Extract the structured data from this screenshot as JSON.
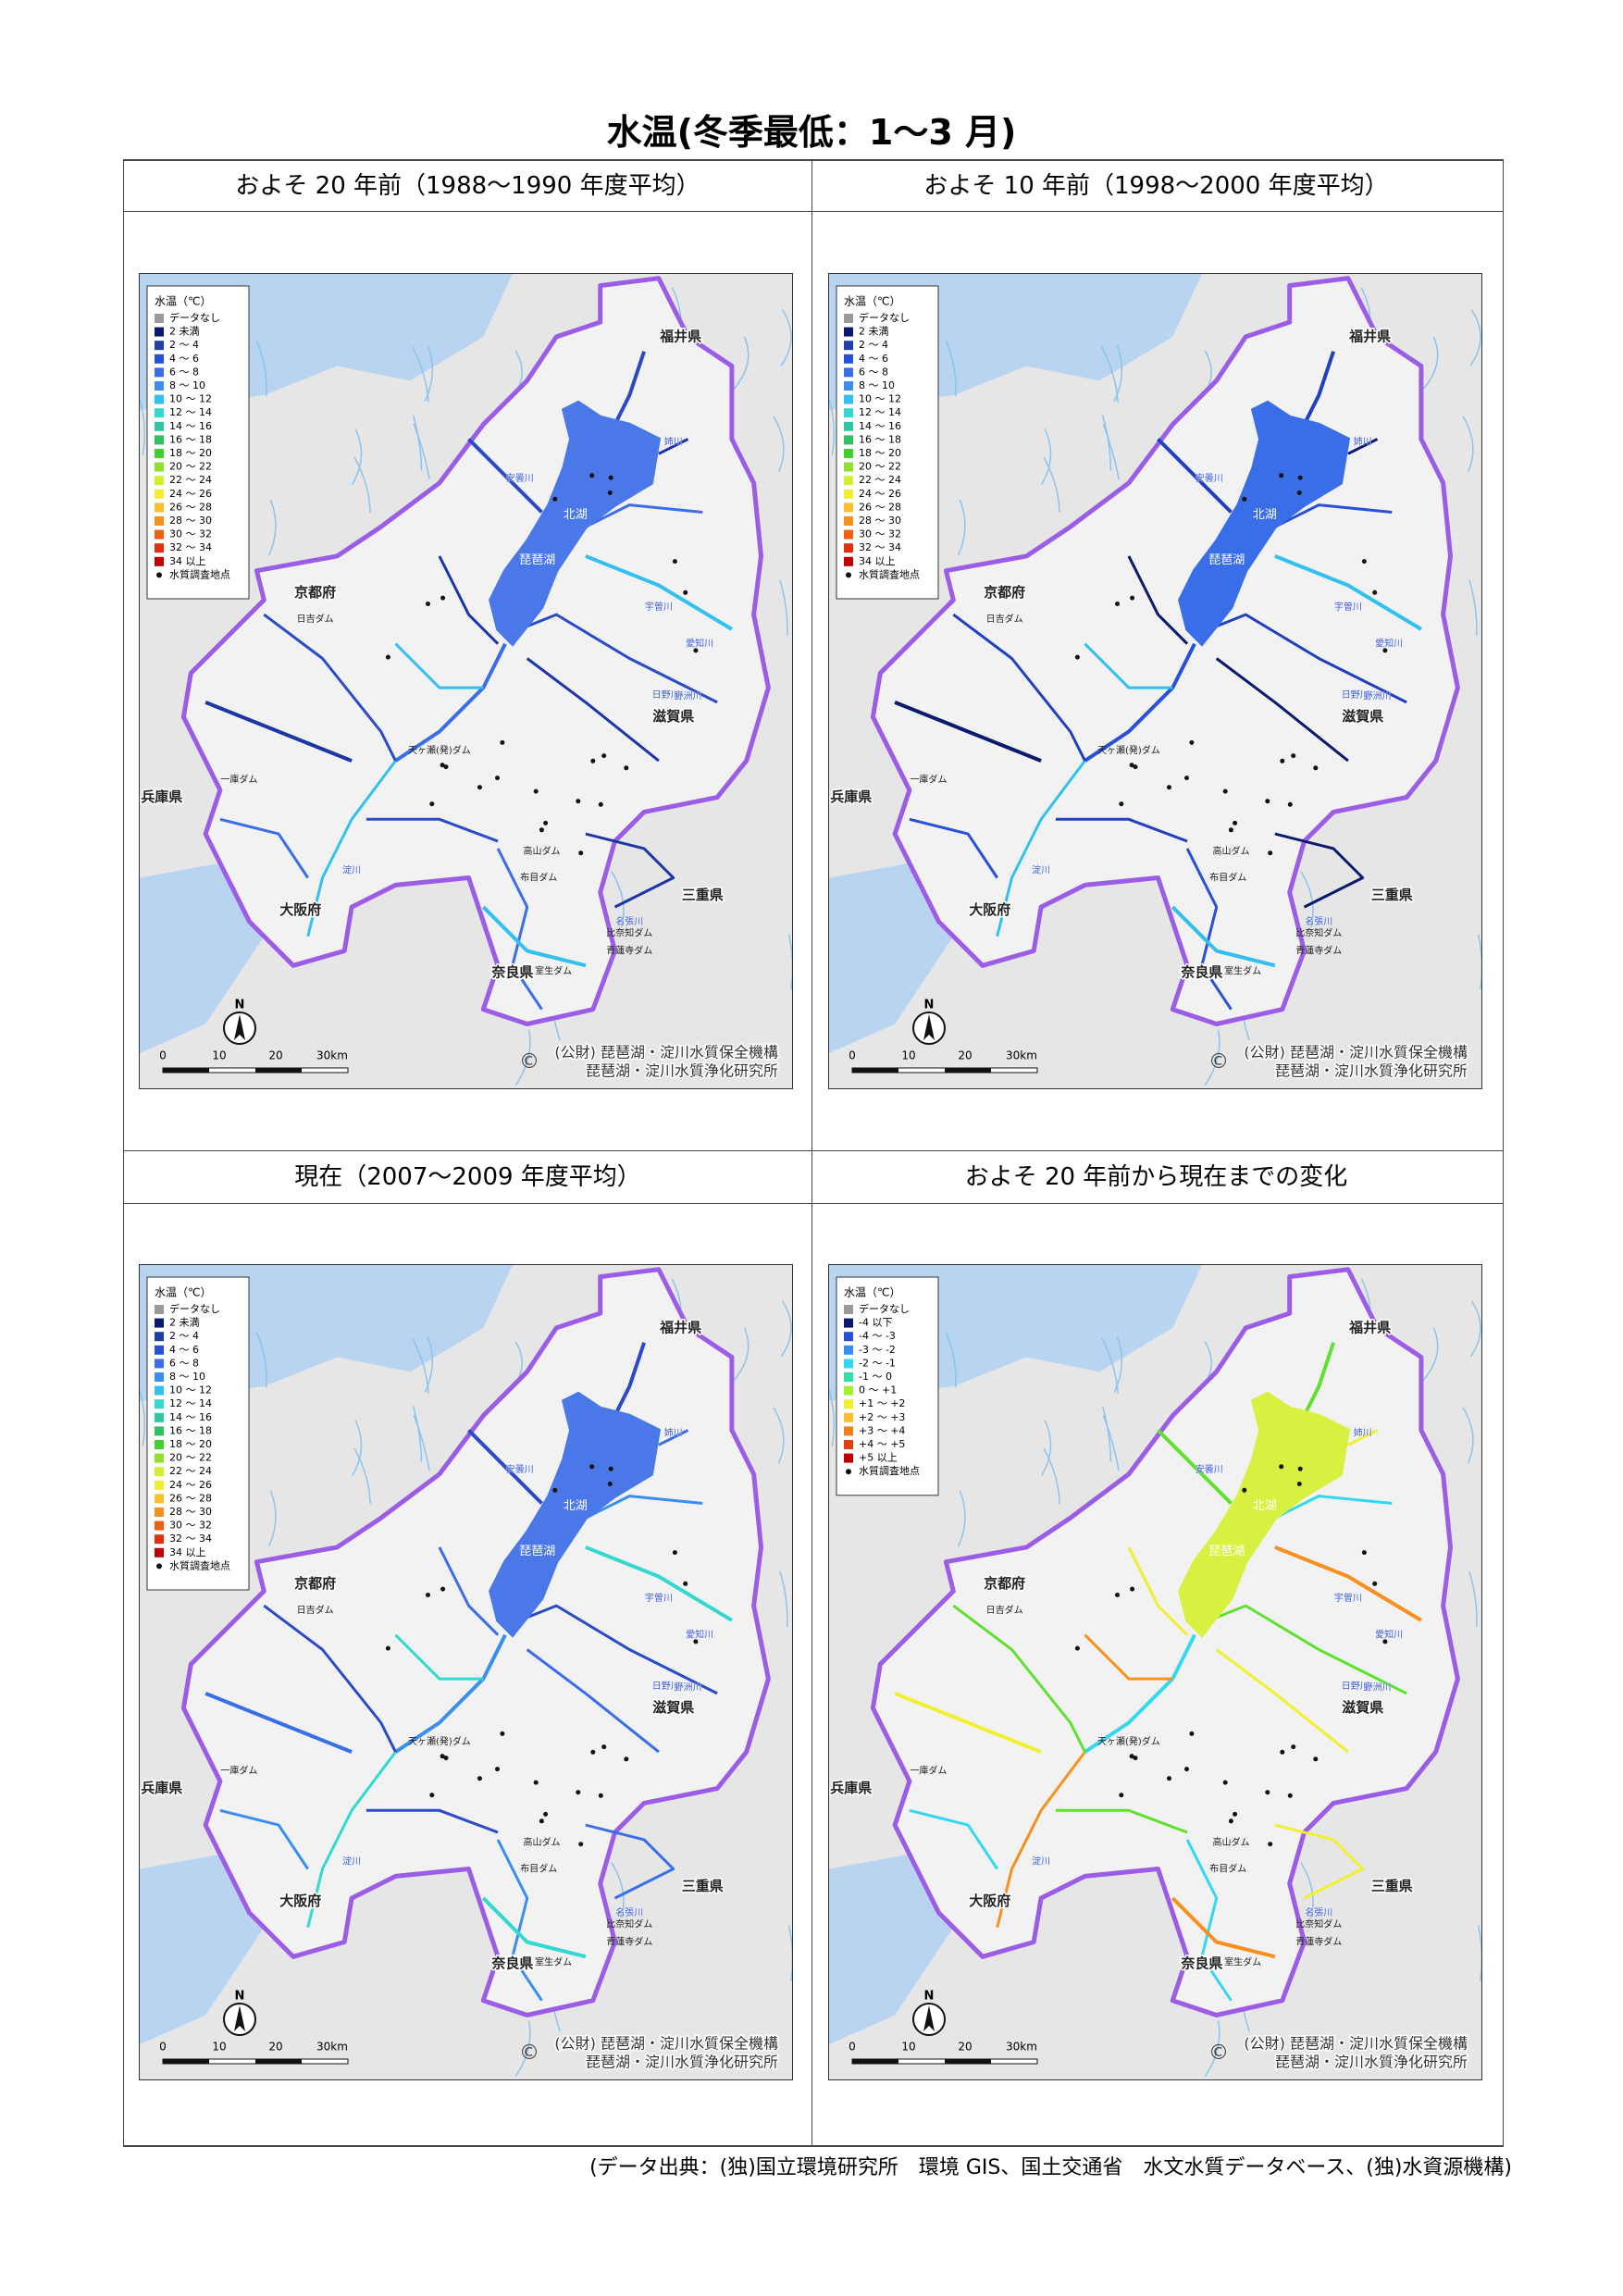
{
  "title": "水温(冬季最低：1〜3 月)",
  "panels": [
    {
      "heading": "およそ 20 年前（1988〜1990 年度平均）",
      "legend_title": "水温（℃）",
      "lake_color": "#4a78e8",
      "river_colors": [
        "#2a4ac8",
        "#1c36a8",
        "#3a6ee8",
        "#33c0f0"
      ],
      "legend": [
        {
          "label": "データなし",
          "color": "#9a9a9a"
        },
        {
          "label": "2 未満",
          "color": "#0a1a6e"
        },
        {
          "label": "2 〜 4",
          "color": "#1f3fa8"
        },
        {
          "label": "4 〜 6",
          "color": "#2850d8"
        },
        {
          "label": "6 〜 8",
          "color": "#3a6ee8"
        },
        {
          "label": "8 〜 10",
          "color": "#3a8ef0"
        },
        {
          "label": "10 〜 12",
          "color": "#33c0f0"
        },
        {
          "label": "12 〜 14",
          "color": "#33d8d0"
        },
        {
          "label": "14 〜 16",
          "color": "#30c8a0"
        },
        {
          "label": "16 〜 18",
          "color": "#30c060"
        },
        {
          "label": "18 〜 20",
          "color": "#40d030"
        },
        {
          "label": "20 〜 22",
          "color": "#90e030"
        },
        {
          "label": "22 〜 24",
          "color": "#d0f030"
        },
        {
          "label": "24 〜 26",
          "color": "#f0f030"
        },
        {
          "label": "26 〜 28",
          "color": "#f8c030"
        },
        {
          "label": "28 〜 30",
          "color": "#f89020"
        },
        {
          "label": "30 〜 32",
          "color": "#f06010"
        },
        {
          "label": "32 〜 34",
          "color": "#e03010"
        },
        {
          "label": "34 以上",
          "color": "#c00000"
        }
      ]
    },
    {
      "heading": "およそ 10 年前（1998〜2000 年度平均）",
      "legend_title": "水温（℃）",
      "lake_color": "#3a6ee8",
      "river_colors": [
        "#2040c0",
        "#0a1a6e",
        "#2850d8",
        "#33c0f0"
      ],
      "legend": [
        {
          "label": "データなし",
          "color": "#9a9a9a"
        },
        {
          "label": "2 未満",
          "color": "#0a1a6e"
        },
        {
          "label": "2 〜 4",
          "color": "#1f3fa8"
        },
        {
          "label": "4 〜 6",
          "color": "#2850d8"
        },
        {
          "label": "6 〜 8",
          "color": "#3a6ee8"
        },
        {
          "label": "8 〜 10",
          "color": "#3a8ef0"
        },
        {
          "label": "10 〜 12",
          "color": "#33c0f0"
        },
        {
          "label": "12 〜 14",
          "color": "#33d8d0"
        },
        {
          "label": "14 〜 16",
          "color": "#30c8a0"
        },
        {
          "label": "16 〜 18",
          "color": "#30c060"
        },
        {
          "label": "18 〜 20",
          "color": "#40d030"
        },
        {
          "label": "20 〜 22",
          "color": "#90e030"
        },
        {
          "label": "22 〜 24",
          "color": "#d0f030"
        },
        {
          "label": "24 〜 26",
          "color": "#f0f030"
        },
        {
          "label": "26 〜 28",
          "color": "#f8c030"
        },
        {
          "label": "28 〜 30",
          "color": "#f89020"
        },
        {
          "label": "30 〜 32",
          "color": "#f06010"
        },
        {
          "label": "32 〜 34",
          "color": "#e03010"
        },
        {
          "label": "34 以上",
          "color": "#c00000"
        }
      ]
    },
    {
      "heading": "現在（2007〜2009 年度平均）",
      "legend_title": "水温（℃）",
      "lake_color": "#4a78e8",
      "river_colors": [
        "#2a4ac8",
        "#3a6ee8",
        "#3a8ef0",
        "#33d8d0"
      ],
      "legend": [
        {
          "label": "データなし",
          "color": "#9a9a9a"
        },
        {
          "label": "2 未満",
          "color": "#0a1a6e"
        },
        {
          "label": "2 〜 4",
          "color": "#1f3fa8"
        },
        {
          "label": "4 〜 6",
          "color": "#2850d8"
        },
        {
          "label": "6 〜 8",
          "color": "#3a6ee8"
        },
        {
          "label": "8 〜 10",
          "color": "#3a8ef0"
        },
        {
          "label": "10 〜 12",
          "color": "#33c0f0"
        },
        {
          "label": "12 〜 14",
          "color": "#33d8d0"
        },
        {
          "label": "14 〜 16",
          "color": "#30c8a0"
        },
        {
          "label": "16 〜 18",
          "color": "#30c060"
        },
        {
          "label": "18 〜 20",
          "color": "#40d030"
        },
        {
          "label": "20 〜 22",
          "color": "#90e030"
        },
        {
          "label": "22 〜 24",
          "color": "#d0f030"
        },
        {
          "label": "24 〜 26",
          "color": "#f0f030"
        },
        {
          "label": "26 〜 28",
          "color": "#f8c030"
        },
        {
          "label": "28 〜 30",
          "color": "#f89020"
        },
        {
          "label": "30 〜 32",
          "color": "#f06010"
        },
        {
          "label": "32 〜 34",
          "color": "#e03010"
        },
        {
          "label": "34 以上",
          "color": "#c00000"
        }
      ]
    },
    {
      "heading": "およそ 20 年前から現在までの変化",
      "legend_title": "水温（℃）",
      "lake_color": "#d8f040",
      "river_colors": [
        "#60e030",
        "#f0f030",
        "#33d8f0",
        "#f89020"
      ],
      "legend": [
        {
          "label": "データなし",
          "color": "#9a9a9a"
        },
        {
          "label": "-4 以下",
          "color": "#0a1a6e"
        },
        {
          "label": "-4 〜 -3",
          "color": "#2850d8"
        },
        {
          "label": "-3 〜 -2",
          "color": "#3a8ef0"
        },
        {
          "label": "-2 〜 -1",
          "color": "#33d8f0"
        },
        {
          "label": "-1 〜 0",
          "color": "#30e0a0"
        },
        {
          "label": "0 〜 +1",
          "color": "#a0f030"
        },
        {
          "label": "+1 〜 +2",
          "color": "#f0f030"
        },
        {
          "label": "+2 〜 +3",
          "color": "#f8c030"
        },
        {
          "label": "+3 〜 +4",
          "color": "#f08020"
        },
        {
          "label": "+4 〜 +5",
          "color": "#e04010"
        },
        {
          "label": "+5 以上",
          "color": "#c00000"
        }
      ]
    }
  ],
  "point_legend": "水質調査地点",
  "map_labels": [
    "福井県",
    "京都府",
    "滋賀県",
    "兵庫県",
    "大阪府",
    "三重県",
    "奈良県",
    "琵琶湖",
    "北湖",
    "日吉ダム",
    "天ヶ瀬(発)ダム",
    "高山ダム",
    "布目ダム",
    "比奈知ダム",
    "青蓮寺ダム",
    "室生ダム",
    "一庫ダム",
    "姉川",
    "安曇川",
    "愛知川",
    "野洲川",
    "日野川",
    "名張川",
    "宇曽川",
    "淀川"
  ],
  "north": "N",
  "scale_ticks": [
    "0",
    "10",
    "20",
    "30km"
  ],
  "credit": [
    "(公財) 琵琶湖・淀川水質保全機構",
    "琵琶湖・淀川水質浄化研究所"
  ],
  "copyright": "©",
  "source": "(データ出典：(独)国立環境研究所　環境 GIS、国土交通省　水文水質データベース、(独)水資源機構)"
}
